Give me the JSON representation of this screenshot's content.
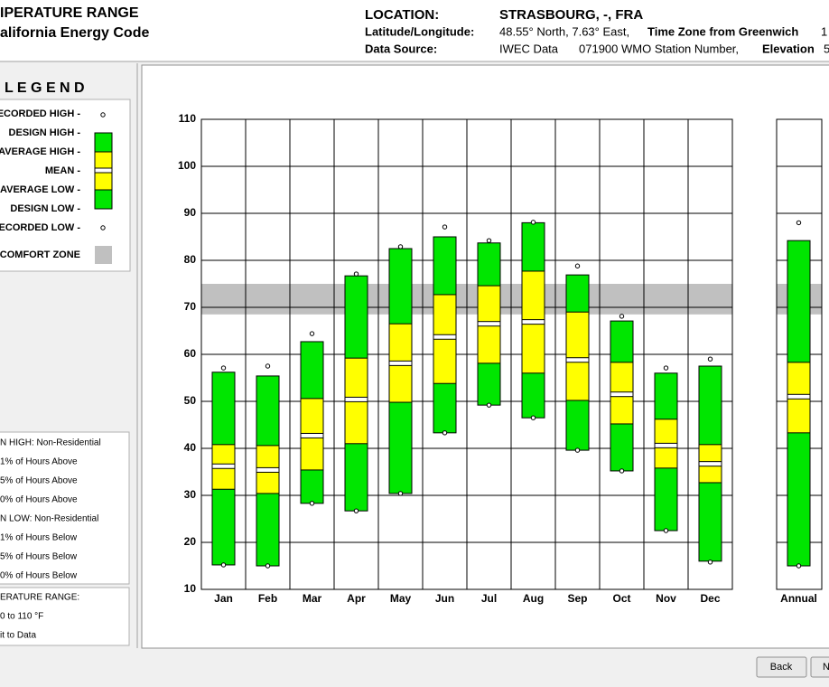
{
  "header": {
    "title": [
      "IPERATURE RANGE",
      "alifornia Energy Code"
    ],
    "location_label": "LOCATION:",
    "location": "STRASBOURG, -, FRA",
    "latlon_label": "Latitude/Longitude:",
    "latlon": "48.55° North, 7.63° East,",
    "timezone_label": "Time Zone from Greenwich",
    "timezone": "1",
    "source_label": "Data Source:",
    "source": "IWEC Data",
    "station": "071900 WMO Station Number,",
    "elevation_label": "Elevation",
    "elevation": "5"
  },
  "legend_title": "L E G E N D",
  "notes": [
    "N HIGH:  Non-Residential",
    "1% of Hours Above",
    "5% of Hours Above",
    "0% of Hours Above",
    "N LOW:  Non-Residential",
    "1% of Hours Below",
    "5% of Hours Below",
    "0% of Hours Below"
  ],
  "range_notes": [
    "ERATURE RANGE:",
    "0 to 110 °F",
    "it to Data"
  ],
  "buttons": [
    "Back",
    "N"
  ],
  "chart_data": {
    "type": "range",
    "categories": [
      "Jan",
      "Feb",
      "Mar",
      "Apr",
      "May",
      "Jun",
      "Jul",
      "Aug",
      "Sep",
      "Oct",
      "Nov",
      "Dec",
      "Annual"
    ],
    "series": [
      {
        "name": "ECORDED HIGH -",
        "values": [
          57.1,
          57.5,
          64.4,
          77.1,
          82.9,
          87.1,
          84.2,
          88.1,
          78.8,
          68.1,
          57.1,
          59,
          88
        ]
      },
      {
        "name": "DESIGN HIGH -",
        "color": "#00e600",
        "values": [
          56.2,
          55.4,
          62.7,
          76.7,
          82.5,
          85,
          83.7,
          88,
          76.9,
          67.1,
          56,
          57.5,
          84.2
        ]
      },
      {
        "name": "AVERAGE HIGH -",
        "color": "#ffff00",
        "values": [
          40.8,
          40.6,
          50.6,
          59.2,
          66.5,
          72.7,
          74.6,
          77.7,
          69,
          58.3,
          46.2,
          40.8,
          58.3
        ]
      },
      {
        "name": "MEAN -",
        "color": "#ffffff",
        "values": [
          36.2,
          35.4,
          42.7,
          50.4,
          58.1,
          63.7,
          66.5,
          66.9,
          58.8,
          51.5,
          40.6,
          36.7,
          51
        ]
      },
      {
        "name": "AVERAGE LOW -",
        "color": "#ffff00",
        "values": [
          31.3,
          30.4,
          35.4,
          41,
          49.8,
          53.8,
          58.1,
          56,
          50.2,
          45.2,
          35.8,
          32.7,
          43.3
        ]
      },
      {
        "name": "DESIGN LOW -",
        "color": "#00e600",
        "values": [
          15.2,
          15,
          28.3,
          26.7,
          30.4,
          43.3,
          49.2,
          46.5,
          39.6,
          35.2,
          22.5,
          16,
          15
        ]
      },
      {
        "name": "ECORDED LOW -",
        "values": [
          15.2,
          15,
          28.3,
          26.7,
          30.4,
          43.3,
          49.2,
          46.5,
          39.6,
          35.2,
          22.5,
          15.8,
          15
        ]
      }
    ],
    "comfort_zone": {
      "name": "COMFORT ZONE",
      "range": [
        68.5,
        75
      ],
      "color": "#c0c0c0"
    },
    "ylim": [
      10,
      110
    ],
    "yticks": [
      10,
      20,
      30,
      40,
      50,
      60,
      70,
      80,
      90,
      100,
      110
    ],
    "grid": true
  }
}
